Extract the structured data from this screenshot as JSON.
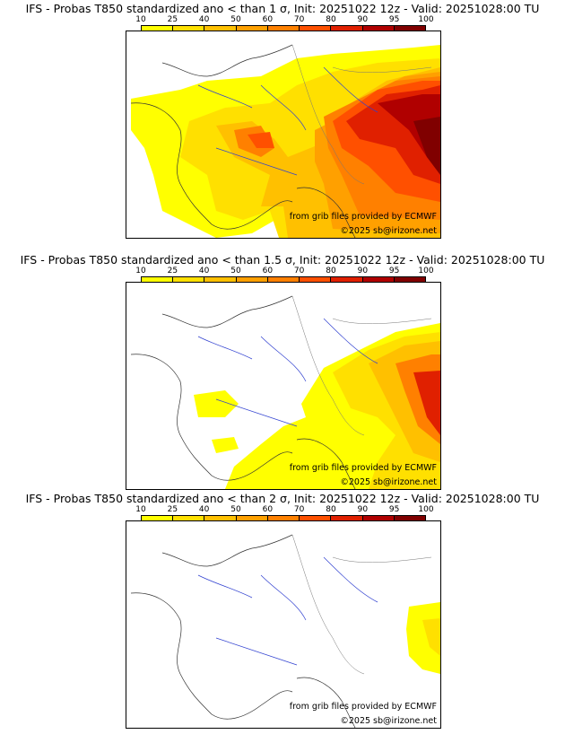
{
  "legend": {
    "ticks": [
      "10",
      "25",
      "40",
      "50",
      "60",
      "70",
      "80",
      "90",
      "95",
      "100"
    ],
    "colors": [
      "#ffff00",
      "#ffe000",
      "#ffc000",
      "#ffa000",
      "#ff8000",
      "#ff5000",
      "#e02000",
      "#b00000",
      "#800000"
    ]
  },
  "credits": {
    "source": "from grib files provided by ECMWF",
    "copyright": "©2025 sb@irizone.net"
  },
  "panels": [
    {
      "title": "IFS - Probas T850  standardized ano < than 1 σ, Init: 20251022 12z - Valid: 20251028:00 TU"
    },
    {
      "title": "IFS - Probas T850  standardized ano < than 1.5 σ, Init: 20251022 12z - Valid: 20251028:00 TU"
    },
    {
      "title": "IFS - Probas T850  standardized ano < than 2 σ, Init: 20251022 12z - Valid: 20251028:00 TU"
    }
  ]
}
